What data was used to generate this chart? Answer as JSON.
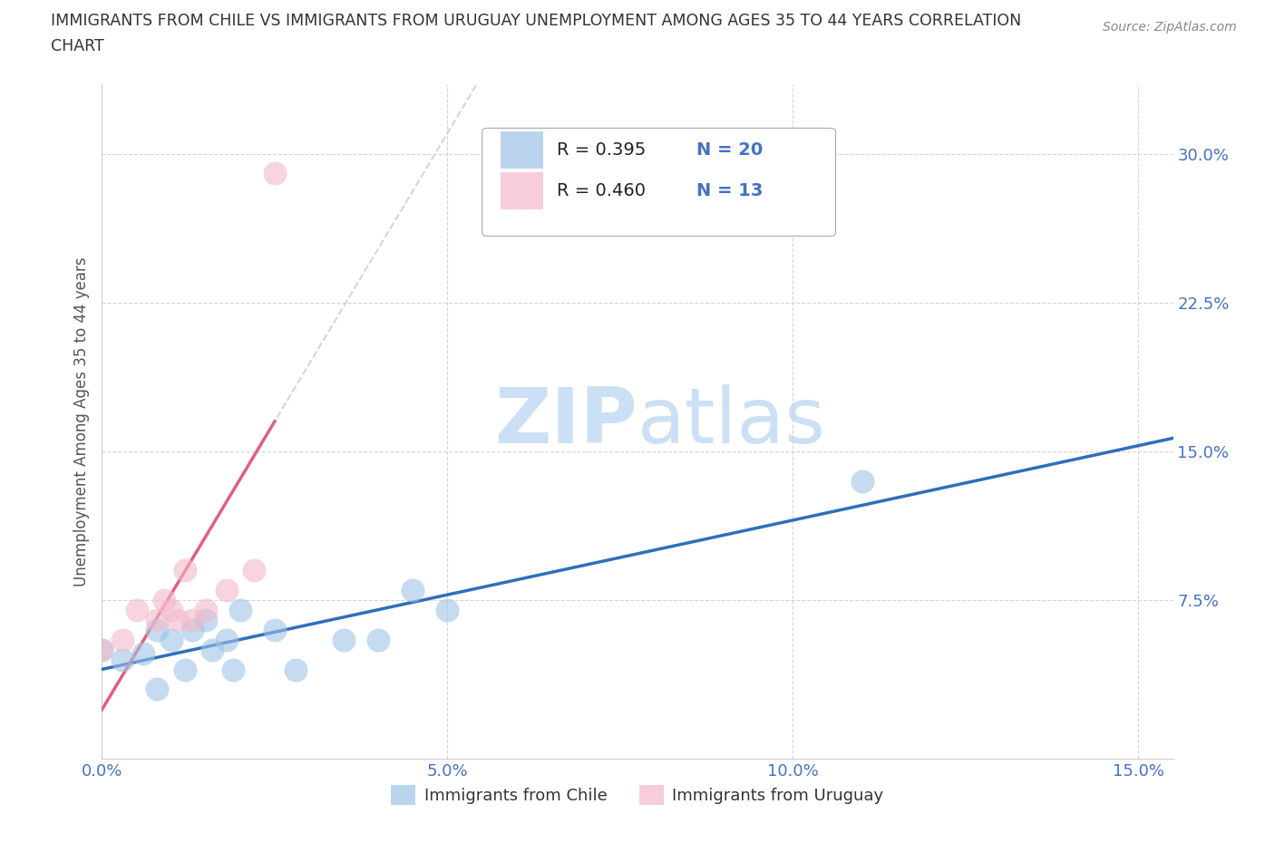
{
  "title_line1": "IMMIGRANTS FROM CHILE VS IMMIGRANTS FROM URUGUAY UNEMPLOYMENT AMONG AGES 35 TO 44 YEARS CORRELATION",
  "title_line2": "CHART",
  "source": "Source: ZipAtlas.com",
  "ylabel": "Unemployment Among Ages 35 to 44 years",
  "xlim": [
    0.0,
    0.155
  ],
  "ylim": [
    -0.005,
    0.335
  ],
  "xticks": [
    0.0,
    0.05,
    0.1,
    0.15
  ],
  "yticks": [
    0.075,
    0.15,
    0.225,
    0.3
  ],
  "xtick_labels": [
    "0.0%",
    "5.0%",
    "10.0%",
    "15.0%"
  ],
  "ytick_labels": [
    "7.5%",
    "15.0%",
    "22.5%",
    "30.0%"
  ],
  "tick_color": "#4472c4",
  "chile_color": "#9dc3e6",
  "uruguay_color": "#f4b8cb",
  "chile_line_color": "#2e6fbb",
  "uruguay_line_color": "#e06080",
  "chile_R": "0.395",
  "chile_N": "20",
  "uruguay_R": "0.460",
  "uruguay_N": "13",
  "watermark_zip": "ZIP",
  "watermark_atlas": "atlas",
  "watermark_color": "#cce0f5",
  "chile_scatter_x": [
    0.0,
    0.003,
    0.006,
    0.008,
    0.008,
    0.01,
    0.012,
    0.013,
    0.015,
    0.016,
    0.018,
    0.019,
    0.02,
    0.025,
    0.028,
    0.035,
    0.04,
    0.045,
    0.05,
    0.11
  ],
  "chile_scatter_y": [
    0.05,
    0.045,
    0.048,
    0.03,
    0.06,
    0.055,
    0.04,
    0.06,
    0.065,
    0.05,
    0.055,
    0.04,
    0.07,
    0.06,
    0.04,
    0.055,
    0.055,
    0.08,
    0.07,
    0.135
  ],
  "uruguay_scatter_x": [
    0.0,
    0.003,
    0.005,
    0.008,
    0.009,
    0.01,
    0.011,
    0.012,
    0.013,
    0.015,
    0.018,
    0.022,
    0.025
  ],
  "uruguay_scatter_y": [
    0.05,
    0.055,
    0.07,
    0.065,
    0.075,
    0.07,
    0.065,
    0.09,
    0.065,
    0.07,
    0.08,
    0.09,
    0.29
  ],
  "legend_label_chile": "Immigrants from Chile",
  "legend_label_uruguay": "Immigrants from Uruguay"
}
